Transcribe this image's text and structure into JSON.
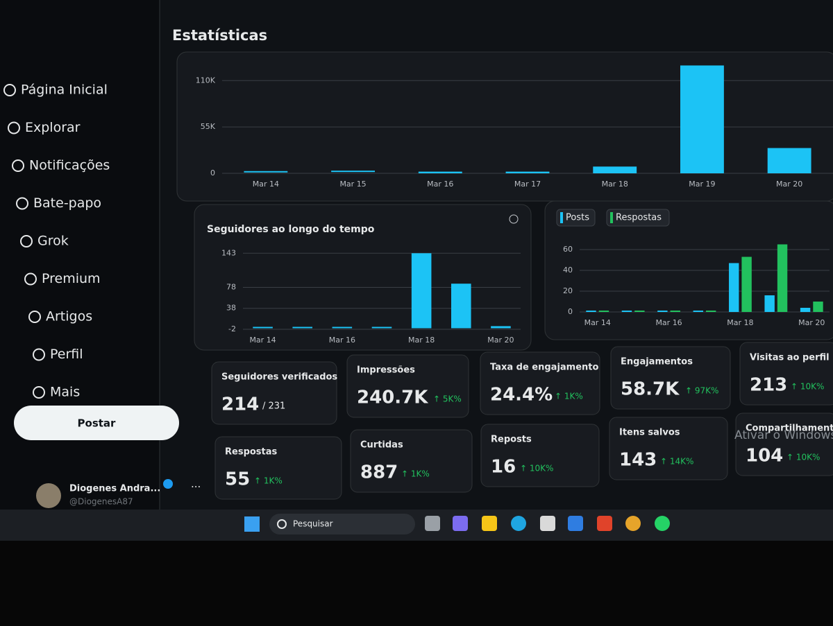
{
  "header": {
    "title": "Estatísticas"
  },
  "sidebar": {
    "items": [
      "Página Inicial",
      "Explorar",
      "Notificações",
      "Bate-papo",
      "Grok",
      "Premium",
      "Artigos",
      "Perfil",
      "Mais"
    ],
    "button": "Postar",
    "user": {
      "name": "Diogenes Andra...",
      "handle": "@DiogenesA87"
    }
  },
  "chart_data": [
    {
      "type": "bar",
      "categories": [
        "Mar 14",
        "Mar 15",
        "Mar 16",
        "Mar 17",
        "Mar 18",
        "Mar 19",
        "Mar 20"
      ],
      "values": [
        1000,
        1500,
        2000,
        2000,
        8000,
        128000,
        30000
      ],
      "color": "#1cc3f5",
      "ylim": [
        0,
        130000
      ],
      "yticks": [
        0,
        {
          "value": 55000,
          "label": "55K"
        },
        {
          "value": 110000,
          "label": "110K"
        }
      ],
      "grid": true
    },
    {
      "type": "bar",
      "title": "Seguidores ao longo do tempo",
      "categories": [
        "Mar 14",
        null,
        "Mar 16",
        null,
        "Mar 18",
        null,
        "Mar 20"
      ],
      "values": [
        0,
        0,
        0,
        0,
        143,
        85,
        4
      ],
      "color": "#1cc3f5",
      "ylim": [
        -2,
        150
      ],
      "yticks": [
        -2,
        38,
        78,
        143
      ],
      "grid": true
    },
    {
      "type": "bar",
      "categories": [
        "Mar 14",
        null,
        "Mar 16",
        null,
        "Mar 18",
        null,
        "Mar 20"
      ],
      "series": [
        {
          "name": "Posts",
          "color": "#1cc3f5",
          "values": [
            0,
            0,
            0,
            0,
            47,
            16,
            4
          ]
        },
        {
          "name": "Respostas",
          "color": "#22c15e",
          "values": [
            0,
            0,
            0,
            0,
            53,
            65,
            10
          ]
        }
      ],
      "ylim": [
        0,
        70
      ],
      "yticks": [
        0,
        20,
        40,
        60
      ],
      "grid": true
    }
  ],
  "cards": [
    {
      "label": "Seguidores verificados",
      "value": "214",
      "total": "/ 231"
    },
    {
      "label": "Impressões",
      "value": "240.7K",
      "change": "↑ 5K%"
    },
    {
      "label": "Taxa de engajamento",
      "value": "24.4%",
      "change": "↑ 1K%"
    },
    {
      "label": "Engajamentos",
      "value": "58.7K",
      "change": "↑ 97K%"
    },
    {
      "label": "Visitas ao perfil",
      "value": "213",
      "change": "↑ 10K%"
    },
    {
      "label": "Respostas",
      "value": "55",
      "change": "↑ 1K%"
    },
    {
      "label": "Curtidas",
      "value": "887",
      "change": "↑ 1K%"
    },
    {
      "label": "Reposts",
      "value": "16",
      "change": "↑ 10K%"
    },
    {
      "label": "Itens salvos",
      "value": "143",
      "change": "↑ 14K%"
    },
    {
      "label": "Compartilhamentos",
      "value": "104",
      "change": "↑ 10K%"
    }
  ],
  "taskbar": {
    "search": "Pesquisar",
    "watermark": "Ativar o Windows"
  }
}
